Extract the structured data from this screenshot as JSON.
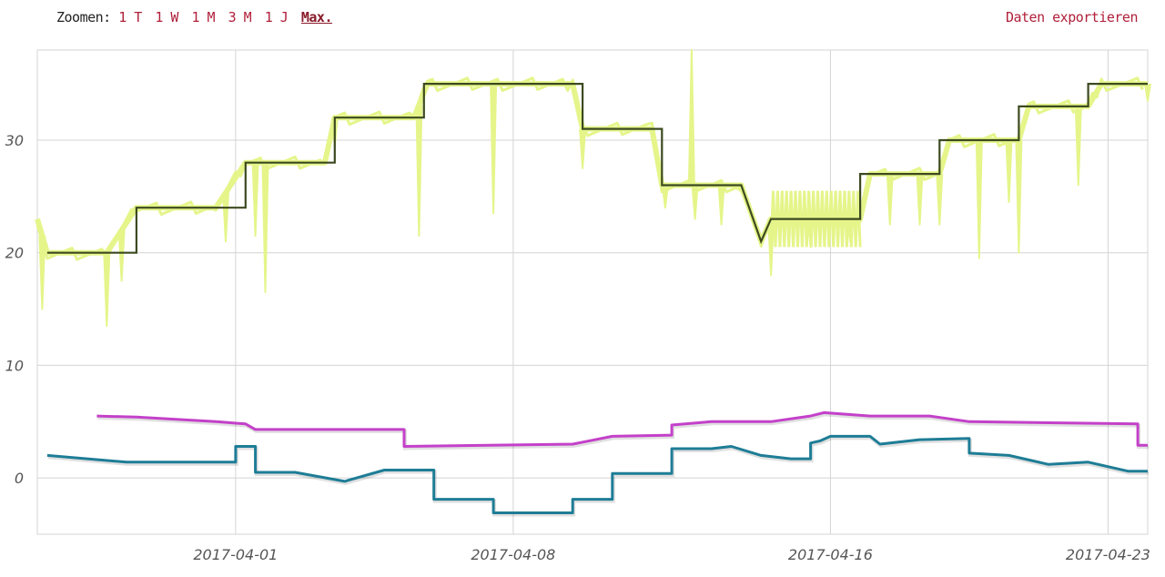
{
  "toolbar": {
    "zoom_label": "Zoomen:",
    "zoom_options": [
      "1 T",
      "1 W",
      "1 M",
      "3 M",
      "1 J",
      "Max."
    ],
    "active_zoom": "Max.",
    "export_label": "Daten exportieren"
  },
  "colors": {
    "link": "#b0203a",
    "grid": "#d4d4d4",
    "yellow_series": "#e5f58a",
    "dark_series": "#3c4a20",
    "magenta_series": "#c341c9",
    "teal_series": "#1e7d96"
  },
  "chart_data": {
    "type": "line",
    "title": "",
    "xlabel": "",
    "ylabel": "",
    "xlim": [
      "2017-03-27",
      "2017-04-24"
    ],
    "ylim": [
      -5,
      38
    ],
    "yticks": [
      0,
      10,
      20,
      30
    ],
    "xticks": [
      "2017-04-01",
      "2017-04-08",
      "2017-04-16",
      "2017-04-23"
    ],
    "grid": true,
    "series": [
      {
        "color": "#e5f58a",
        "style": "noisy",
        "points": [
          [
            "2017-03-27",
            23
          ],
          [
            "2017-03-27T06:00",
            20
          ],
          [
            "2017-03-28T18:00",
            20
          ],
          [
            "2017-03-29T12:00",
            24
          ],
          [
            "2017-03-31T12:00",
            24
          ],
          [
            "2017-04-01T06:00",
            28
          ],
          [
            "2017-04-03T06:00",
            28
          ],
          [
            "2017-04-03T12:00",
            32
          ],
          [
            "2017-04-05T12:00",
            32
          ],
          [
            "2017-04-05T20:00",
            35
          ],
          [
            "2017-04-09T12:00",
            35
          ],
          [
            "2017-04-09T18:00",
            31
          ],
          [
            "2017-04-11T12:00",
            31
          ],
          [
            "2017-04-11T18:00",
            26
          ],
          [
            "2017-04-13T18:00",
            26
          ],
          [
            "2017-04-14T06:00",
            21
          ],
          [
            "2017-04-14T12:00",
            23
          ],
          [
            "2017-04-16T18:00",
            23
          ],
          [
            "2017-04-17T00:00",
            27
          ],
          [
            "2017-04-18T18:00",
            27
          ],
          [
            "2017-04-19T00:00",
            30
          ],
          [
            "2017-04-20T18:00",
            30
          ],
          [
            "2017-04-21T00:00",
            33
          ],
          [
            "2017-04-22T12:00",
            33
          ],
          [
            "2017-04-22T20:00",
            35
          ],
          [
            "2017-04-24",
            35
          ]
        ],
        "spikes": [
          [
            "2017-03-27T03:00",
            15
          ],
          [
            "2017-03-28T18:00",
            13.5
          ],
          [
            "2017-03-29T03:00",
            17.5
          ],
          [
            "2017-03-31T18:00",
            21
          ],
          [
            "2017-04-01T12:00",
            21.5
          ],
          [
            "2017-04-01T18:00",
            16.5
          ],
          [
            "2017-04-03T12:00",
            29.5
          ],
          [
            "2017-04-05T15:00",
            21.5
          ],
          [
            "2017-04-07T12:00",
            23.5
          ],
          [
            "2017-04-09T18:00",
            27.5
          ],
          [
            "2017-04-11T20:00",
            24
          ],
          [
            "2017-04-12T12:00",
            38
          ],
          [
            "2017-04-12T14:00",
            23
          ],
          [
            "2017-04-13T06:00",
            22.5
          ],
          [
            "2017-04-14T12:00",
            18
          ],
          [
            "2017-04-15T12:00",
            20.5
          ],
          [
            "2017-04-16T12:00",
            21
          ],
          [
            "2017-04-17T12:00",
            22.5
          ],
          [
            "2017-04-18T06:00",
            22.5
          ],
          [
            "2017-04-18T18:00",
            22.5
          ],
          [
            "2017-04-19T18:00",
            19.5
          ],
          [
            "2017-04-20T12:00",
            24.5
          ],
          [
            "2017-04-20T18:00",
            20
          ],
          [
            "2017-04-22T06:00",
            26
          ],
          [
            "2017-04-24",
            33.5
          ]
        ]
      },
      {
        "color": "#3c4a20",
        "style": "step",
        "points": [
          [
            "2017-03-27T06:00",
            20
          ],
          [
            "2017-03-29T12:00",
            20
          ],
          [
            "2017-03-29T12:00",
            24
          ],
          [
            "2017-04-01T06:00",
            24
          ],
          [
            "2017-04-01T06:00",
            28
          ],
          [
            "2017-04-03T12:00",
            28
          ],
          [
            "2017-04-03T12:00",
            32
          ],
          [
            "2017-04-05T18:00",
            32
          ],
          [
            "2017-04-05T18:00",
            35
          ],
          [
            "2017-04-09T18:00",
            35
          ],
          [
            "2017-04-09T18:00",
            31
          ],
          [
            "2017-04-11T18:00",
            31
          ],
          [
            "2017-04-11T18:00",
            26
          ],
          [
            "2017-04-13T18:00",
            26
          ],
          [
            "2017-04-14T06:00",
            21
          ],
          [
            "2017-04-14T12:00",
            23
          ],
          [
            "2017-04-16T18:00",
            23
          ],
          [
            "2017-04-16T18:00",
            27
          ],
          [
            "2017-04-18T18:00",
            27
          ],
          [
            "2017-04-18T18:00",
            30
          ],
          [
            "2017-04-20T18:00",
            30
          ],
          [
            "2017-04-20T18:00",
            33
          ],
          [
            "2017-04-22T12:00",
            33
          ],
          [
            "2017-04-22T12:00",
            35
          ],
          [
            "2017-04-24",
            35
          ]
        ]
      },
      {
        "color": "#c341c9",
        "style": "line",
        "points": [
          [
            "2017-03-28T12:00",
            5.5
          ],
          [
            "2017-03-29T12:00",
            5.4
          ],
          [
            "2017-03-31T12:00",
            5.0
          ],
          [
            "2017-04-01T06:00",
            4.8
          ],
          [
            "2017-04-01T12:00",
            4.3
          ],
          [
            "2017-04-05T06:00",
            4.3
          ],
          [
            "2017-04-05T06:00",
            2.8
          ],
          [
            "2017-04-09T12:00",
            3.0
          ],
          [
            "2017-04-10T12:00",
            3.7
          ],
          [
            "2017-04-12T00:00",
            3.8
          ],
          [
            "2017-04-12T00:00",
            4.7
          ],
          [
            "2017-04-13T00:00",
            5.0
          ],
          [
            "2017-04-14T12:00",
            5.0
          ],
          [
            "2017-04-15T12:00",
            5.5
          ],
          [
            "2017-04-15T20:00",
            5.8
          ],
          [
            "2017-04-17T00:00",
            5.5
          ],
          [
            "2017-04-18T12:00",
            5.5
          ],
          [
            "2017-04-19T12:00",
            5.0
          ],
          [
            "2017-04-23T18:00",
            4.8
          ],
          [
            "2017-04-23T18:00",
            2.9
          ],
          [
            "2017-04-24",
            2.9
          ]
        ]
      },
      {
        "color": "#1e7d96",
        "style": "line",
        "points": [
          [
            "2017-03-27T06:00",
            2.0
          ],
          [
            "2017-03-29T06:00",
            1.4
          ],
          [
            "2017-04-01T00:00",
            1.4
          ],
          [
            "2017-04-01T00:00",
            2.8
          ],
          [
            "2017-04-01T12:00",
            2.8
          ],
          [
            "2017-04-01T12:00",
            0.5
          ],
          [
            "2017-04-02T12:00",
            0.5
          ],
          [
            "2017-04-03T18:00",
            -0.3
          ],
          [
            "2017-04-04T18:00",
            0.7
          ],
          [
            "2017-04-06T00:00",
            0.7
          ],
          [
            "2017-04-06T00:00",
            -1.9
          ],
          [
            "2017-04-07T12:00",
            -1.9
          ],
          [
            "2017-04-07T12:00",
            -3.1
          ],
          [
            "2017-04-09T12:00",
            -3.1
          ],
          [
            "2017-04-09T12:00",
            -1.9
          ],
          [
            "2017-04-10T12:00",
            -1.9
          ],
          [
            "2017-04-10T12:00",
            0.4
          ],
          [
            "2017-04-12T00:00",
            0.4
          ],
          [
            "2017-04-12T00:00",
            2.6
          ],
          [
            "2017-04-13T00:00",
            2.6
          ],
          [
            "2017-04-13T12:00",
            2.8
          ],
          [
            "2017-04-14T06:00",
            2.0
          ],
          [
            "2017-04-15T00:00",
            1.7
          ],
          [
            "2017-04-15T12:00",
            1.7
          ],
          [
            "2017-04-15T12:00",
            3.1
          ],
          [
            "2017-04-15T18:00",
            3.3
          ],
          [
            "2017-04-16T00:00",
            3.7
          ],
          [
            "2017-04-17T00:00",
            3.7
          ],
          [
            "2017-04-17T06:00",
            3.0
          ],
          [
            "2017-04-18T06:00",
            3.4
          ],
          [
            "2017-04-19T12:00",
            3.5
          ],
          [
            "2017-04-19T12:00",
            2.2
          ],
          [
            "2017-04-20T12:00",
            2.0
          ],
          [
            "2017-04-21T12:00",
            1.2
          ],
          [
            "2017-04-22T12:00",
            1.4
          ],
          [
            "2017-04-23T12:00",
            0.6
          ],
          [
            "2017-04-24",
            0.6
          ]
        ]
      }
    ]
  }
}
